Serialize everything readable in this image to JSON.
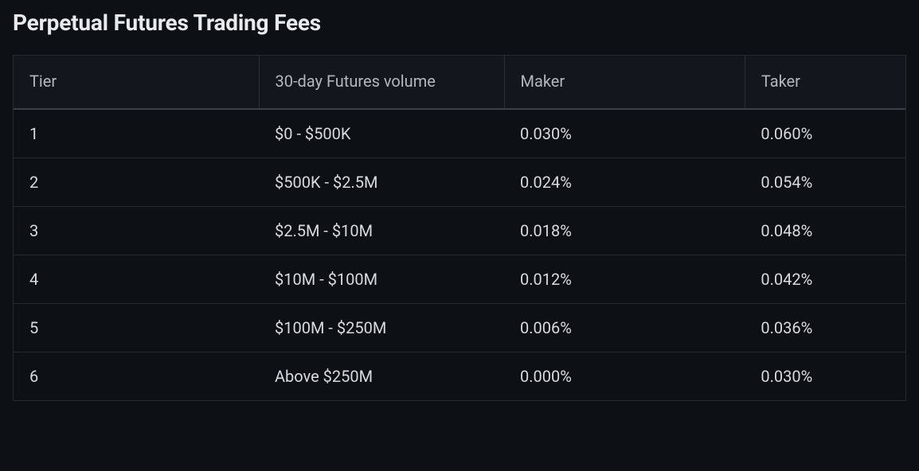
{
  "title": "Perpetual Futures Trading Fees",
  "table": {
    "type": "table",
    "background_color": "#0d1015",
    "header_background": "#13161c",
    "header_text_color": "#b2b7c0",
    "cell_text_color": "#d7dbe2",
    "border_color": "#262a33",
    "header_divider_color": "#2a2e38",
    "header_bottom_border": "#3a3f4b",
    "title_fontsize": 28,
    "title_fontweight": 700,
    "cell_fontsize": 20,
    "cell_fontweight": 400,
    "columns": [
      {
        "key": "tier",
        "label": "Tier",
        "width_pct": 27.5,
        "align": "left"
      },
      {
        "key": "volume",
        "label": "30-day Futures volume",
        "width_pct": 27.5,
        "align": "left"
      },
      {
        "key": "maker",
        "label": "Maker",
        "width_pct": 27.0,
        "align": "left"
      },
      {
        "key": "taker",
        "label": "Taker",
        "width_pct": 18.0,
        "align": "left"
      }
    ],
    "rows": [
      {
        "tier": "1",
        "volume": "$0 - $500K",
        "maker": "0.030%",
        "taker": "0.060%"
      },
      {
        "tier": "2",
        "volume": "$500K - $2.5M",
        "maker": "0.024%",
        "taker": "0.054%"
      },
      {
        "tier": "3",
        "volume": "$2.5M - $10M",
        "maker": "0.018%",
        "taker": "0.048%"
      },
      {
        "tier": "4",
        "volume": "$10M - $100M",
        "maker": "0.012%",
        "taker": "0.042%"
      },
      {
        "tier": "5",
        "volume": "$100M - $250M",
        "maker": "0.006%",
        "taker": "0.036%"
      },
      {
        "tier": "6",
        "volume": "Above $250M",
        "maker": "0.000%",
        "taker": "0.030%"
      }
    ]
  }
}
